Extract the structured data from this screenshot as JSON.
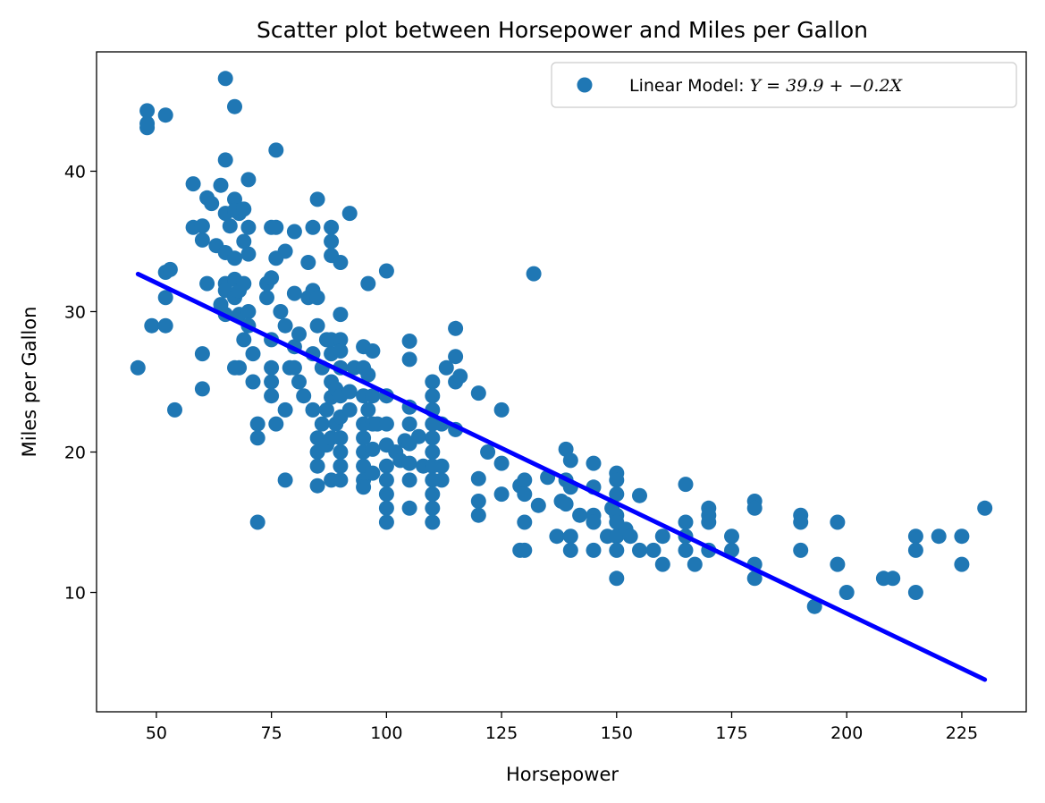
{
  "chart_data": {
    "type": "scatter",
    "title": "Scatter plot between Horsepower and Miles per Gallon",
    "xlabel": "Horsepower",
    "ylabel": "Miles per Gallon",
    "xlim": [
      37,
      239
    ],
    "ylim": [
      1.5,
      48.5
    ],
    "xticks": [
      50,
      75,
      100,
      125,
      150,
      175,
      200,
      225
    ],
    "yticks": [
      10,
      20,
      30,
      40
    ],
    "grid": false,
    "legend_position": "top-right",
    "legend": {
      "prefix": "Linear Model: ",
      "equation": "Y = 39.9 + −0.2X"
    },
    "colors": {
      "points": "#1f77b4",
      "line": "#0000ff"
    },
    "regression": {
      "intercept": 39.9,
      "slope": -0.157,
      "x_range": [
        46,
        230
      ]
    },
    "series": [
      {
        "points": [
          [
            46,
            26
          ],
          [
            48,
            43.1
          ],
          [
            48,
            43.4
          ],
          [
            48,
            44.3
          ],
          [
            49,
            29
          ],
          [
            52,
            29
          ],
          [
            52,
            31
          ],
          [
            52,
            32.8
          ],
          [
            52,
            44
          ],
          [
            53,
            33
          ],
          [
            54,
            23
          ],
          [
            58,
            39.1
          ],
          [
            58,
            36
          ],
          [
            60,
            35.1
          ],
          [
            60,
            36.1
          ],
          [
            60,
            27
          ],
          [
            60,
            24.5
          ],
          [
            61,
            32
          ],
          [
            61,
            38.1
          ],
          [
            62,
            37.7
          ],
          [
            63,
            34.7
          ],
          [
            64,
            39
          ],
          [
            64,
            30.5
          ],
          [
            65,
            46.6
          ],
          [
            65,
            40.8
          ],
          [
            65,
            37
          ],
          [
            65,
            32
          ],
          [
            65,
            31.5
          ],
          [
            65,
            29.8
          ],
          [
            65,
            34.2
          ],
          [
            66,
            36.1
          ],
          [
            67,
            44.6
          ],
          [
            67,
            38
          ],
          [
            67,
            37.2
          ],
          [
            67,
            32.3
          ],
          [
            67,
            31
          ],
          [
            67,
            26
          ],
          [
            67,
            33.8
          ],
          [
            68,
            37
          ],
          [
            68,
            29.8
          ],
          [
            68,
            31.5
          ],
          [
            68,
            26
          ],
          [
            69,
            37.3
          ],
          [
            69,
            35
          ],
          [
            69,
            32
          ],
          [
            69,
            28
          ],
          [
            70,
            39.4
          ],
          [
            70,
            36
          ],
          [
            70,
            34.1
          ],
          [
            70,
            30
          ],
          [
            70,
            29
          ],
          [
            71,
            27
          ],
          [
            71,
            25
          ],
          [
            72,
            22
          ],
          [
            72,
            21
          ],
          [
            72,
            15
          ],
          [
            74,
            31
          ],
          [
            74,
            32
          ],
          [
            75,
            36
          ],
          [
            75,
            32.4
          ],
          [
            75,
            28
          ],
          [
            75,
            26
          ],
          [
            75,
            25
          ],
          [
            75,
            24
          ],
          [
            76,
            41.5
          ],
          [
            76,
            36
          ],
          [
            76,
            33.8
          ],
          [
            76,
            22
          ],
          [
            77,
            30
          ],
          [
            78,
            34.3
          ],
          [
            78,
            29
          ],
          [
            78,
            23
          ],
          [
            78,
            18
          ],
          [
            79,
            26
          ],
          [
            80,
            35.7
          ],
          [
            80,
            27.5
          ],
          [
            80,
            31.3
          ],
          [
            80,
            26
          ],
          [
            81,
            25
          ],
          [
            81,
            28.4
          ],
          [
            82,
            24
          ],
          [
            83,
            31
          ],
          [
            83,
            33.5
          ],
          [
            84,
            36
          ],
          [
            84,
            31.5
          ],
          [
            84,
            27
          ],
          [
            84,
            23
          ],
          [
            85,
            38
          ],
          [
            85,
            29
          ],
          [
            85,
            31
          ],
          [
            85,
            21
          ],
          [
            85,
            20
          ],
          [
            85,
            19
          ],
          [
            85,
            17.6
          ],
          [
            86,
            26
          ],
          [
            86,
            22
          ],
          [
            87,
            28
          ],
          [
            87,
            23
          ],
          [
            87,
            20.5
          ],
          [
            88,
            36
          ],
          [
            88,
            35
          ],
          [
            88,
            34
          ],
          [
            88,
            28
          ],
          [
            88,
            27
          ],
          [
            88,
            25
          ],
          [
            88,
            23.9
          ],
          [
            88,
            21
          ],
          [
            88,
            18
          ],
          [
            89,
            24.5
          ],
          [
            89,
            22
          ],
          [
            90,
            33.5
          ],
          [
            90,
            29.8
          ],
          [
            90,
            28
          ],
          [
            90,
            27.2
          ],
          [
            90,
            26
          ],
          [
            90,
            24
          ],
          [
            90,
            22.5
          ],
          [
            90,
            21
          ],
          [
            90,
            20
          ],
          [
            90,
            19
          ],
          [
            90,
            18
          ],
          [
            92,
            37
          ],
          [
            92,
            24.3
          ],
          [
            92,
            23
          ],
          [
            93,
            26
          ],
          [
            95,
            27.5
          ],
          [
            95,
            26
          ],
          [
            95,
            24
          ],
          [
            95,
            22
          ],
          [
            95,
            21
          ],
          [
            95,
            20
          ],
          [
            95,
            19
          ],
          [
            95,
            18
          ],
          [
            95,
            17.5
          ],
          [
            96,
            32
          ],
          [
            96,
            25.5
          ],
          [
            96,
            23
          ],
          [
            97,
            27.2
          ],
          [
            97,
            24
          ],
          [
            97,
            22
          ],
          [
            97,
            20.2
          ],
          [
            97,
            18.5
          ],
          [
            98,
            22
          ],
          [
            100,
            32.9
          ],
          [
            100,
            24
          ],
          [
            100,
            22
          ],
          [
            100,
            20.5
          ],
          [
            100,
            19
          ],
          [
            100,
            18
          ],
          [
            100,
            17
          ],
          [
            100,
            16
          ],
          [
            100,
            15
          ],
          [
            102,
            20
          ],
          [
            103,
            19.4
          ],
          [
            104,
            20.8
          ],
          [
            105,
            27.9
          ],
          [
            105,
            26.6
          ],
          [
            105,
            23.2
          ],
          [
            105,
            22
          ],
          [
            105,
            20.6
          ],
          [
            105,
            19.2
          ],
          [
            105,
            18
          ],
          [
            105,
            16
          ],
          [
            107,
            21.1
          ],
          [
            108,
            19
          ],
          [
            110,
            25
          ],
          [
            110,
            24
          ],
          [
            110,
            23
          ],
          [
            110,
            22
          ],
          [
            110,
            21
          ],
          [
            110,
            20
          ],
          [
            110,
            19
          ],
          [
            110,
            18
          ],
          [
            110,
            17
          ],
          [
            110,
            16
          ],
          [
            110,
            15
          ],
          [
            112,
            22
          ],
          [
            112,
            19
          ],
          [
            112,
            18
          ],
          [
            113,
            26
          ],
          [
            115,
            28.8
          ],
          [
            115,
            26.8
          ],
          [
            115,
            25
          ],
          [
            115,
            21.6
          ],
          [
            116,
            25.4
          ],
          [
            120,
            24.2
          ],
          [
            120,
            18.1
          ],
          [
            120,
            16.5
          ],
          [
            120,
            15.5
          ],
          [
            122,
            20
          ],
          [
            125,
            23
          ],
          [
            125,
            19.2
          ],
          [
            125,
            17
          ],
          [
            129,
            17.6
          ],
          [
            129,
            13
          ],
          [
            130,
            18
          ],
          [
            130,
            17
          ],
          [
            130,
            15
          ],
          [
            130,
            13
          ],
          [
            132,
            32.7
          ],
          [
            133,
            16.2
          ],
          [
            135,
            18.2
          ],
          [
            137,
            14
          ],
          [
            138,
            16.5
          ],
          [
            139,
            20.2
          ],
          [
            139,
            18
          ],
          [
            139,
            16.3
          ],
          [
            140,
            19.4
          ],
          [
            140,
            17.5
          ],
          [
            140,
            14
          ],
          [
            140,
            13
          ],
          [
            142,
            15.5
          ],
          [
            145,
            19.2
          ],
          [
            145,
            17.5
          ],
          [
            145,
            15.5
          ],
          [
            145,
            15
          ],
          [
            145,
            13
          ],
          [
            148,
            14
          ],
          [
            149,
            16
          ],
          [
            150,
            18.5
          ],
          [
            150,
            18
          ],
          [
            150,
            17
          ],
          [
            150,
            15.5
          ],
          [
            150,
            15
          ],
          [
            150,
            14
          ],
          [
            150,
            13
          ],
          [
            150,
            11
          ],
          [
            152,
            14.5
          ],
          [
            153,
            14
          ],
          [
            155,
            16.9
          ],
          [
            155,
            13
          ],
          [
            158,
            13
          ],
          [
            160,
            14
          ],
          [
            160,
            12
          ],
          [
            165,
            17.7
          ],
          [
            165,
            15
          ],
          [
            165,
            14
          ],
          [
            165,
            13
          ],
          [
            167,
            12
          ],
          [
            170,
            16
          ],
          [
            170,
            15.5
          ],
          [
            170,
            15
          ],
          [
            170,
            13
          ],
          [
            175,
            14
          ],
          [
            175,
            13
          ],
          [
            180,
            16.5
          ],
          [
            180,
            16
          ],
          [
            180,
            12
          ],
          [
            180,
            11
          ],
          [
            190,
            15.5
          ],
          [
            190,
            15
          ],
          [
            190,
            13
          ],
          [
            193,
            9
          ],
          [
            198,
            15
          ],
          [
            198,
            12
          ],
          [
            200,
            10
          ],
          [
            208,
            11
          ],
          [
            210,
            11
          ],
          [
            215,
            14
          ],
          [
            215,
            13
          ],
          [
            215,
            10
          ],
          [
            220,
            14
          ],
          [
            225,
            14
          ],
          [
            225,
            12
          ],
          [
            230,
            16
          ]
        ]
      }
    ]
  }
}
